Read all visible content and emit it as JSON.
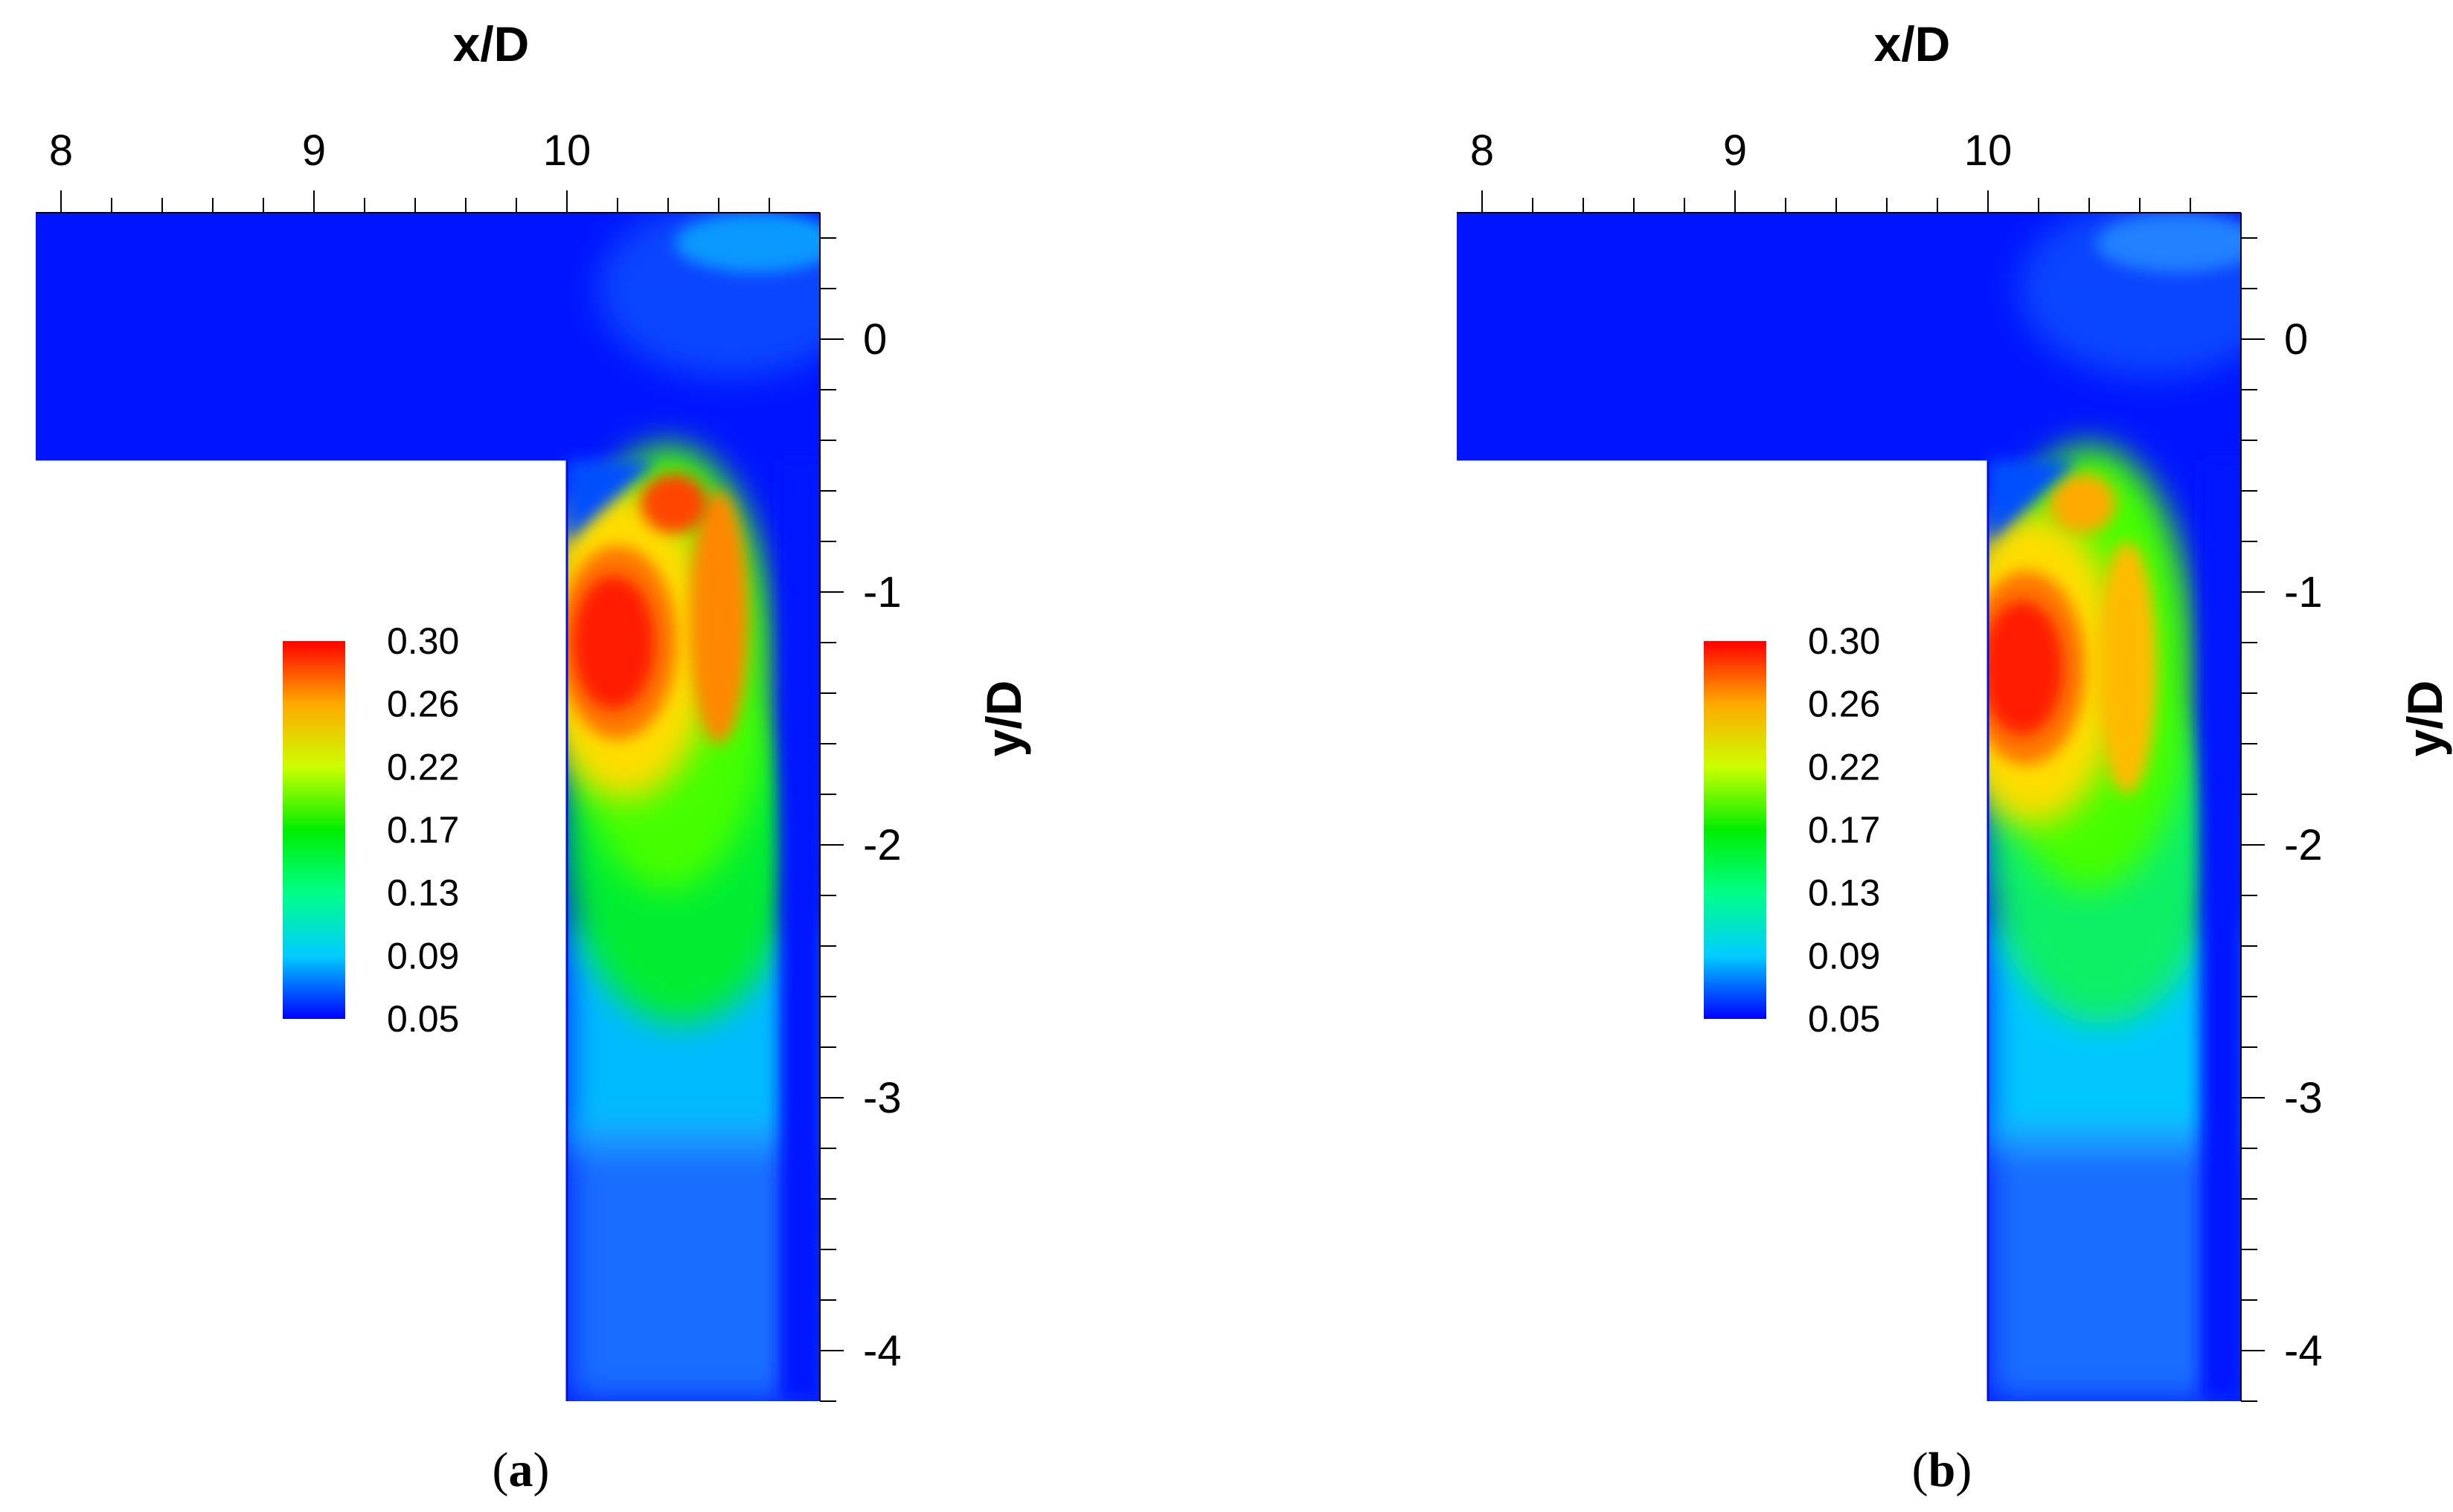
{
  "chart_data": [
    {
      "type": "heatmap",
      "panel": "a",
      "caption_open": "(",
      "caption_letter": "a",
      "caption_close": ")",
      "xlabel": "x/D",
      "ylabel": "y/D",
      "xlim": [
        7.9,
        11.0
      ],
      "ylim": [
        -4.2,
        0.5
      ],
      "x_ticks": [
        8,
        9,
        10
      ],
      "x_tick_labels": [
        "8",
        "9",
        "10"
      ],
      "y_ticks": [
        0,
        -1,
        -2,
        -3,
        -4
      ],
      "y_tick_labels": [
        "0",
        "-1",
        "-2",
        "-3",
        "-4"
      ],
      "domain": {
        "horizontal_channel": {
          "x": [
            7.9,
            11.0
          ],
          "y": [
            -0.48,
            0.5
          ]
        },
        "vertical_channel": {
          "x": [
            10.0,
            11.0
          ],
          "y": [
            -4.2,
            0.5
          ]
        }
      },
      "colorbar": {
        "levels": [
          0.3,
          0.26,
          0.22,
          0.17,
          0.13,
          0.09,
          0.05
        ],
        "labels": [
          "0.30",
          "0.26",
          "0.22",
          "0.17",
          "0.13",
          "0.09",
          "0.05"
        ],
        "colormap": [
          "#0000ff",
          "#00ccff",
          "#00ff88",
          "#00ee00",
          "#ccff00",
          "#ffaa00",
          "#ff0000"
        ]
      },
      "features": [
        {
          "name": "primary-peak",
          "x": 10.2,
          "y": -1.2,
          "value": 0.3
        },
        {
          "name": "outer-ridge",
          "x": 10.6,
          "y": -1.1,
          "value": 0.27
        },
        {
          "name": "corner-spot",
          "x": 10.75,
          "y": 0.38,
          "value": 0.11
        }
      ]
    },
    {
      "type": "heatmap",
      "panel": "b",
      "caption_open": "(",
      "caption_letter": "b",
      "caption_close": ")",
      "xlabel": "x/D",
      "ylabel": "y/D",
      "xlim": [
        7.9,
        11.0
      ],
      "ylim": [
        -4.2,
        0.5
      ],
      "x_ticks": [
        8,
        9,
        10
      ],
      "x_tick_labels": [
        "8",
        "9",
        "10"
      ],
      "y_ticks": [
        0,
        -1,
        -2,
        -3,
        -4
      ],
      "y_tick_labels": [
        "0",
        "-1",
        "-2",
        "-3",
        "-4"
      ],
      "domain": {
        "horizontal_channel": {
          "x": [
            7.9,
            11.0
          ],
          "y": [
            -0.48,
            0.5
          ]
        },
        "vertical_channel": {
          "x": [
            10.0,
            11.0
          ],
          "y": [
            -4.2,
            0.5
          ]
        }
      },
      "colorbar": {
        "levels": [
          0.3,
          0.26,
          0.22,
          0.17,
          0.13,
          0.09,
          0.05
        ],
        "labels": [
          "0.30",
          "0.26",
          "0.22",
          "0.17",
          "0.13",
          "0.09",
          "0.05"
        ],
        "colormap": [
          "#0000ff",
          "#00ccff",
          "#00ff88",
          "#00ee00",
          "#ccff00",
          "#ffaa00",
          "#ff0000"
        ]
      },
      "features": [
        {
          "name": "primary-peak",
          "x": 10.15,
          "y": -1.3,
          "value": 0.3
        },
        {
          "name": "outer-ridge",
          "x": 10.55,
          "y": -1.3,
          "value": 0.26
        },
        {
          "name": "corner-spot",
          "x": 10.75,
          "y": 0.38,
          "value": 0.08
        }
      ]
    }
  ]
}
